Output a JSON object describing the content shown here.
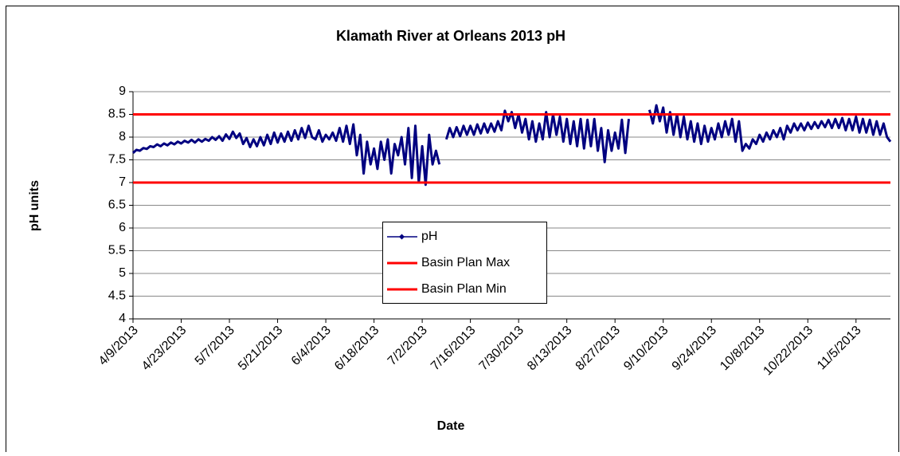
{
  "chart_data": {
    "type": "line",
    "title": "Klamath River at Orleans 2013 pH",
    "x_label": "Date",
    "y_label": "pH units",
    "ylim": [
      4,
      9
    ],
    "yticks": [
      4,
      4.5,
      5,
      5.5,
      6,
      6.5,
      7,
      7.5,
      8,
      8.5,
      9
    ],
    "xlim": [
      "4/9/2013",
      "11/15/2013"
    ],
    "xticks": [
      "4/9/2013",
      "4/23/2013",
      "5/7/2013",
      "5/21/2013",
      "6/4/2013",
      "6/18/2013",
      "7/2/2013",
      "7/16/2013",
      "7/30/2013",
      "8/13/2013",
      "8/27/2013",
      "9/10/2013",
      "9/24/2013",
      "10/8/2013",
      "10/22/2013",
      "11/5/2013"
    ],
    "grid": true,
    "x": [
      "4/9/2013",
      "4/10/2013",
      "4/11/2013",
      "4/12/2013",
      "4/13/2013",
      "4/14/2013",
      "4/15/2013",
      "4/16/2013",
      "4/17/2013",
      "4/18/2013",
      "4/19/2013",
      "4/20/2013",
      "4/21/2013",
      "4/22/2013",
      "4/23/2013",
      "4/24/2013",
      "4/25/2013",
      "4/26/2013",
      "4/27/2013",
      "4/28/2013",
      "4/29/2013",
      "4/30/2013",
      "5/1/2013",
      "5/2/2013",
      "5/3/2013",
      "5/4/2013",
      "5/5/2013",
      "5/6/2013",
      "5/7/2013",
      "5/8/2013",
      "5/9/2013",
      "5/10/2013",
      "5/11/2013",
      "5/12/2013",
      "5/13/2013",
      "5/14/2013",
      "5/15/2013",
      "5/16/2013",
      "5/17/2013",
      "5/18/2013",
      "5/19/2013",
      "5/20/2013",
      "5/21/2013",
      "5/22/2013",
      "5/23/2013",
      "5/24/2013",
      "5/25/2013",
      "5/26/2013",
      "5/27/2013",
      "5/28/2013",
      "5/29/2013",
      "5/30/2013",
      "5/31/2013",
      "6/1/2013",
      "6/2/2013",
      "6/3/2013",
      "6/4/2013",
      "6/5/2013",
      "6/6/2013",
      "6/7/2013",
      "6/8/2013",
      "6/9/2013",
      "6/10/2013",
      "6/11/2013",
      "6/12/2013",
      "6/13/2013",
      "6/14/2013",
      "6/15/2013",
      "6/16/2013",
      "6/17/2013",
      "6/18/2013",
      "6/19/2013",
      "6/20/2013",
      "6/21/2013",
      "6/22/2013",
      "6/23/2013",
      "6/24/2013",
      "6/25/2013",
      "6/26/2013",
      "6/27/2013",
      "6/28/2013",
      "6/29/2013",
      "6/30/2013",
      "7/1/2013",
      "7/2/2013",
      "7/3/2013",
      "7/4/2013",
      "7/5/2013",
      "7/6/2013",
      "7/7/2013",
      "7/8/2013",
      "7/9/2013",
      "7/10/2013",
      "7/11/2013",
      "7/12/2013",
      "7/13/2013",
      "7/14/2013",
      "7/15/2013",
      "7/16/2013",
      "7/17/2013",
      "7/18/2013",
      "7/19/2013",
      "7/20/2013",
      "7/21/2013",
      "7/22/2013",
      "7/23/2013",
      "7/24/2013",
      "7/25/2013",
      "7/26/2013",
      "7/27/2013",
      "7/28/2013",
      "7/29/2013",
      "7/30/2013",
      "7/31/2013",
      "8/1/2013",
      "8/2/2013",
      "8/3/2013",
      "8/4/2013",
      "8/5/2013",
      "8/6/2013",
      "8/7/2013",
      "8/8/2013",
      "8/9/2013",
      "8/10/2013",
      "8/11/2013",
      "8/12/2013",
      "8/13/2013",
      "8/14/2013",
      "8/15/2013",
      "8/16/2013",
      "8/17/2013",
      "8/18/2013",
      "8/19/2013",
      "8/20/2013",
      "8/21/2013",
      "8/22/2013",
      "8/23/2013",
      "8/24/2013",
      "8/25/2013",
      "8/26/2013",
      "8/27/2013",
      "8/28/2013",
      "8/29/2013",
      "8/30/2013",
      "8/31/2013",
      "9/1/2013",
      "9/2/2013",
      "9/3/2013",
      "9/4/2013",
      "9/5/2013",
      "9/6/2013",
      "9/7/2013",
      "9/8/2013",
      "9/9/2013",
      "9/10/2013",
      "9/11/2013",
      "9/12/2013",
      "9/13/2013",
      "9/14/2013",
      "9/15/2013",
      "9/16/2013",
      "9/17/2013",
      "9/18/2013",
      "9/19/2013",
      "9/20/2013",
      "9/21/2013",
      "9/22/2013",
      "9/23/2013",
      "9/24/2013",
      "9/25/2013",
      "9/26/2013",
      "9/27/2013",
      "9/28/2013",
      "9/29/2013",
      "9/30/2013",
      "10/1/2013",
      "10/2/2013",
      "10/3/2013",
      "10/4/2013",
      "10/5/2013",
      "10/6/2013",
      "10/7/2013",
      "10/8/2013",
      "10/9/2013",
      "10/10/2013",
      "10/11/2013",
      "10/12/2013",
      "10/13/2013",
      "10/14/2013",
      "10/15/2013",
      "10/16/2013",
      "10/17/2013",
      "10/18/2013",
      "10/19/2013",
      "10/20/2013",
      "10/21/2013",
      "10/22/2013",
      "10/23/2013",
      "10/24/2013",
      "10/25/2013",
      "10/26/2013",
      "10/27/2013",
      "10/28/2013",
      "10/29/2013",
      "10/30/2013",
      "10/31/2013",
      "11/1/2013",
      "11/2/2013",
      "11/3/2013",
      "11/4/2013",
      "11/5/2013",
      "11/6/2013",
      "11/7/2013",
      "11/8/2013",
      "11/9/2013",
      "11/10/2013",
      "11/11/2013",
      "11/12/2013",
      "11/13/2013",
      "11/14/2013",
      "11/15/2013"
    ],
    "series": [
      {
        "name": "pH",
        "color": "#000080",
        "values": [
          7.65,
          7.72,
          7.7,
          7.76,
          7.74,
          7.8,
          7.78,
          7.84,
          7.8,
          7.86,
          7.82,
          7.88,
          7.84,
          7.9,
          7.86,
          7.92,
          7.88,
          7.94,
          7.88,
          7.95,
          7.9,
          7.96,
          7.92,
          8.0,
          7.94,
          8.02,
          7.92,
          8.06,
          7.96,
          8.12,
          7.98,
          8.08,
          7.85,
          7.98,
          7.78,
          7.95,
          7.8,
          8.0,
          7.82,
          8.05,
          7.85,
          8.1,
          7.88,
          8.08,
          7.9,
          8.12,
          7.92,
          8.15,
          7.95,
          8.2,
          7.98,
          8.25,
          8.0,
          7.95,
          8.15,
          7.9,
          8.05,
          7.95,
          8.1,
          7.92,
          8.2,
          7.9,
          8.25,
          7.85,
          8.28,
          7.6,
          8.05,
          7.2,
          7.9,
          7.4,
          7.75,
          7.3,
          7.9,
          7.5,
          7.95,
          7.2,
          7.85,
          7.6,
          8.0,
          7.4,
          8.2,
          7.1,
          8.25,
          7.0,
          7.8,
          6.95,
          8.05,
          7.4,
          7.7,
          7.4,
          null,
          7.95,
          8.2,
          8.0,
          8.22,
          8.02,
          8.25,
          8.05,
          8.25,
          8.05,
          8.28,
          8.08,
          8.3,
          8.1,
          8.3,
          8.12,
          8.35,
          8.15,
          8.58,
          8.35,
          8.55,
          8.2,
          8.5,
          8.1,
          8.4,
          7.95,
          8.35,
          7.9,
          8.3,
          7.95,
          8.55,
          8.0,
          8.5,
          8.05,
          8.45,
          7.9,
          8.4,
          7.85,
          8.35,
          7.8,
          8.4,
          7.75,
          8.38,
          7.8,
          8.4,
          7.7,
          8.2,
          7.45,
          8.15,
          7.7,
          8.1,
          7.75,
          8.38,
          7.65,
          8.4,
          null,
          null,
          null,
          null,
          null,
          8.6,
          8.3,
          8.7,
          8.35,
          8.65,
          8.1,
          8.55,
          8.05,
          8.5,
          8.0,
          8.45,
          7.95,
          8.35,
          7.9,
          8.3,
          7.85,
          8.25,
          7.9,
          8.2,
          7.95,
          8.3,
          8.0,
          8.35,
          8.05,
          8.4,
          7.9,
          8.35,
          7.7,
          7.85,
          7.75,
          7.95,
          7.85,
          8.05,
          7.9,
          8.1,
          7.95,
          8.15,
          8.0,
          8.2,
          7.95,
          8.25,
          8.1,
          8.3,
          8.15,
          8.3,
          8.15,
          8.32,
          8.18,
          8.33,
          8.2,
          8.35,
          8.22,
          8.38,
          8.2,
          8.4,
          8.2,
          8.42,
          8.15,
          8.4,
          8.15,
          8.45,
          8.1,
          8.4,
          8.1,
          8.38,
          8.05,
          8.35,
          8.05,
          8.3,
          8.0,
          7.9
        ]
      }
    ],
    "reference_lines": [
      {
        "name": "Basin Plan Max",
        "color": "#ff0000",
        "value": 8.5
      },
      {
        "name": "Basin Plan Min",
        "color": "#ff0000",
        "value": 7
      }
    ]
  }
}
